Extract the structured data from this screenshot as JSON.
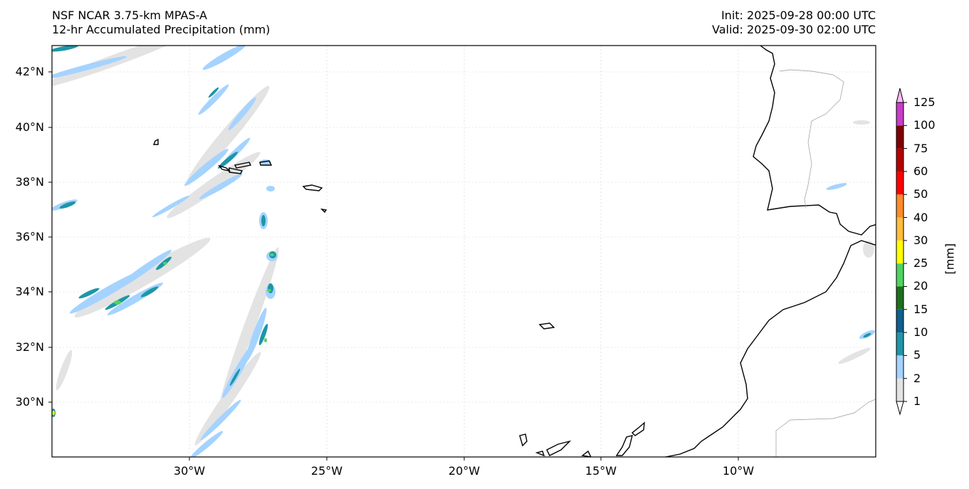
{
  "title": {
    "model": "NSF NCAR 3.75-km MPAS-A",
    "field": "12-hr Accumulated Precipitation (mm)",
    "init": "Init: 2025-09-28 00:00 UTC",
    "valid": "Valid: 2025-09-30 02:00 UTC"
  },
  "axes": {
    "lat_labels": [
      "42°N",
      "40°N",
      "38°N",
      "36°N",
      "34°N",
      "32°N",
      "30°N"
    ],
    "lon_labels": [
      "30°W",
      "25°W",
      "20°W",
      "15°W",
      "10°W"
    ]
  },
  "colorbar": {
    "unit": "[mm]",
    "levels": [
      "1",
      "2",
      "5",
      "10",
      "15",
      "20",
      "25",
      "30",
      "40",
      "50",
      "60",
      "75",
      "100",
      "125"
    ],
    "colors": [
      "#e3e3e3",
      "#a5d3ff",
      "#1e96a8",
      "#0f5f8f",
      "#1e6e1e",
      "#4fd45f",
      "#ffff00",
      "#ffbe3c",
      "#ff8c28",
      "#ff0000",
      "#b40000",
      "#7f0000",
      "#c83cc8",
      "#ffb9ff"
    ]
  },
  "map": {
    "extent_lon": [
      -35,
      -5
    ],
    "extent_lat": [
      28,
      43
    ]
  }
}
